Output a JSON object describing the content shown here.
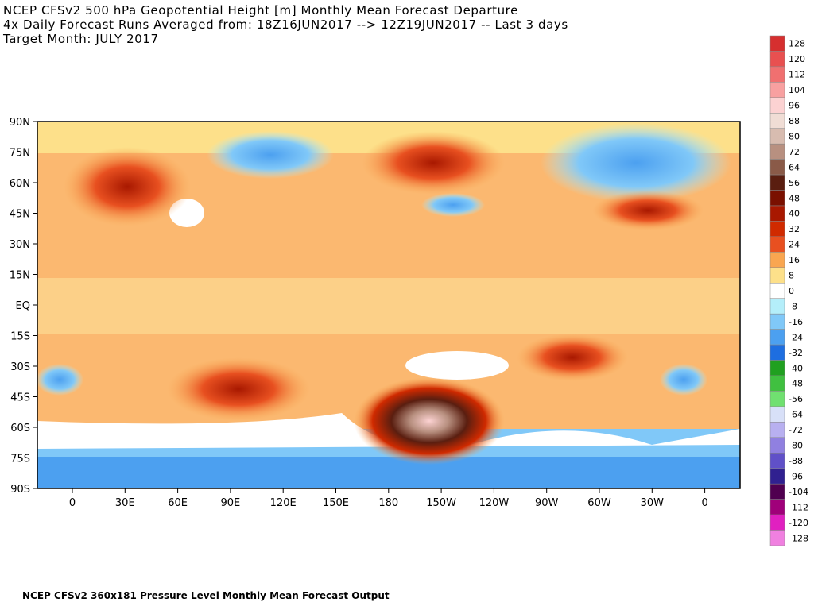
{
  "header": {
    "lines": [
      "NCEP CFSv2 500 hPa Geopotential Height [m] Monthly Mean Forecast Departure",
      "4x Daily Forecast Runs Averaged from: 18Z16JUN2017 --> 12Z19JUN2017 -- Last 3 days",
      "Target Month: JULY 2017"
    ]
  },
  "map": {
    "lat_labels": [
      "90N",
      "75N",
      "60N",
      "45N",
      "30N",
      "15N",
      "EQ",
      "15S",
      "30S",
      "45S",
      "60S",
      "75S",
      "90S"
    ],
    "lon_labels": [
      "0",
      "30E",
      "60E",
      "90E",
      "120E",
      "150E",
      "180",
      "150W",
      "120W",
      "90W",
      "60W",
      "30W",
      "0"
    ]
  },
  "colorbar": {
    "levels": [
      128,
      120,
      112,
      104,
      96,
      88,
      80,
      72,
      64,
      56,
      48,
      40,
      32,
      24,
      16,
      8,
      0,
      -8,
      -16,
      -24,
      -32,
      -40,
      -48,
      -56,
      -64,
      -72,
      -80,
      -88,
      -96,
      -104,
      -112,
      -120,
      -128
    ],
    "colors": [
      "#d62f2f",
      "#e85050",
      "#f07070",
      "#f8a0a0",
      "#fcd2d2",
      "#f0ddd5",
      "#d8bcb0",
      "#b89080",
      "#8a5a48",
      "#5a1e10",
      "#7a1000",
      "#a81800",
      "#d02a00",
      "#e85020",
      "#f9a650",
      "#fde08a",
      "#ffffff",
      "#b4eefa",
      "#80c8f8",
      "#4ca0f0",
      "#1e6ee0",
      "#20a020",
      "#40c040",
      "#70e070",
      "#d8e0f8",
      "#b8b0f0",
      "#9080e0",
      "#6050c8",
      "#302090",
      "#500050",
      "#a0007a",
      "#e020c0",
      "#f080e0"
    ]
  },
  "footer": "NCEP CFSv2 360x181 Pressure Level Monthly Mean Forecast Output"
}
